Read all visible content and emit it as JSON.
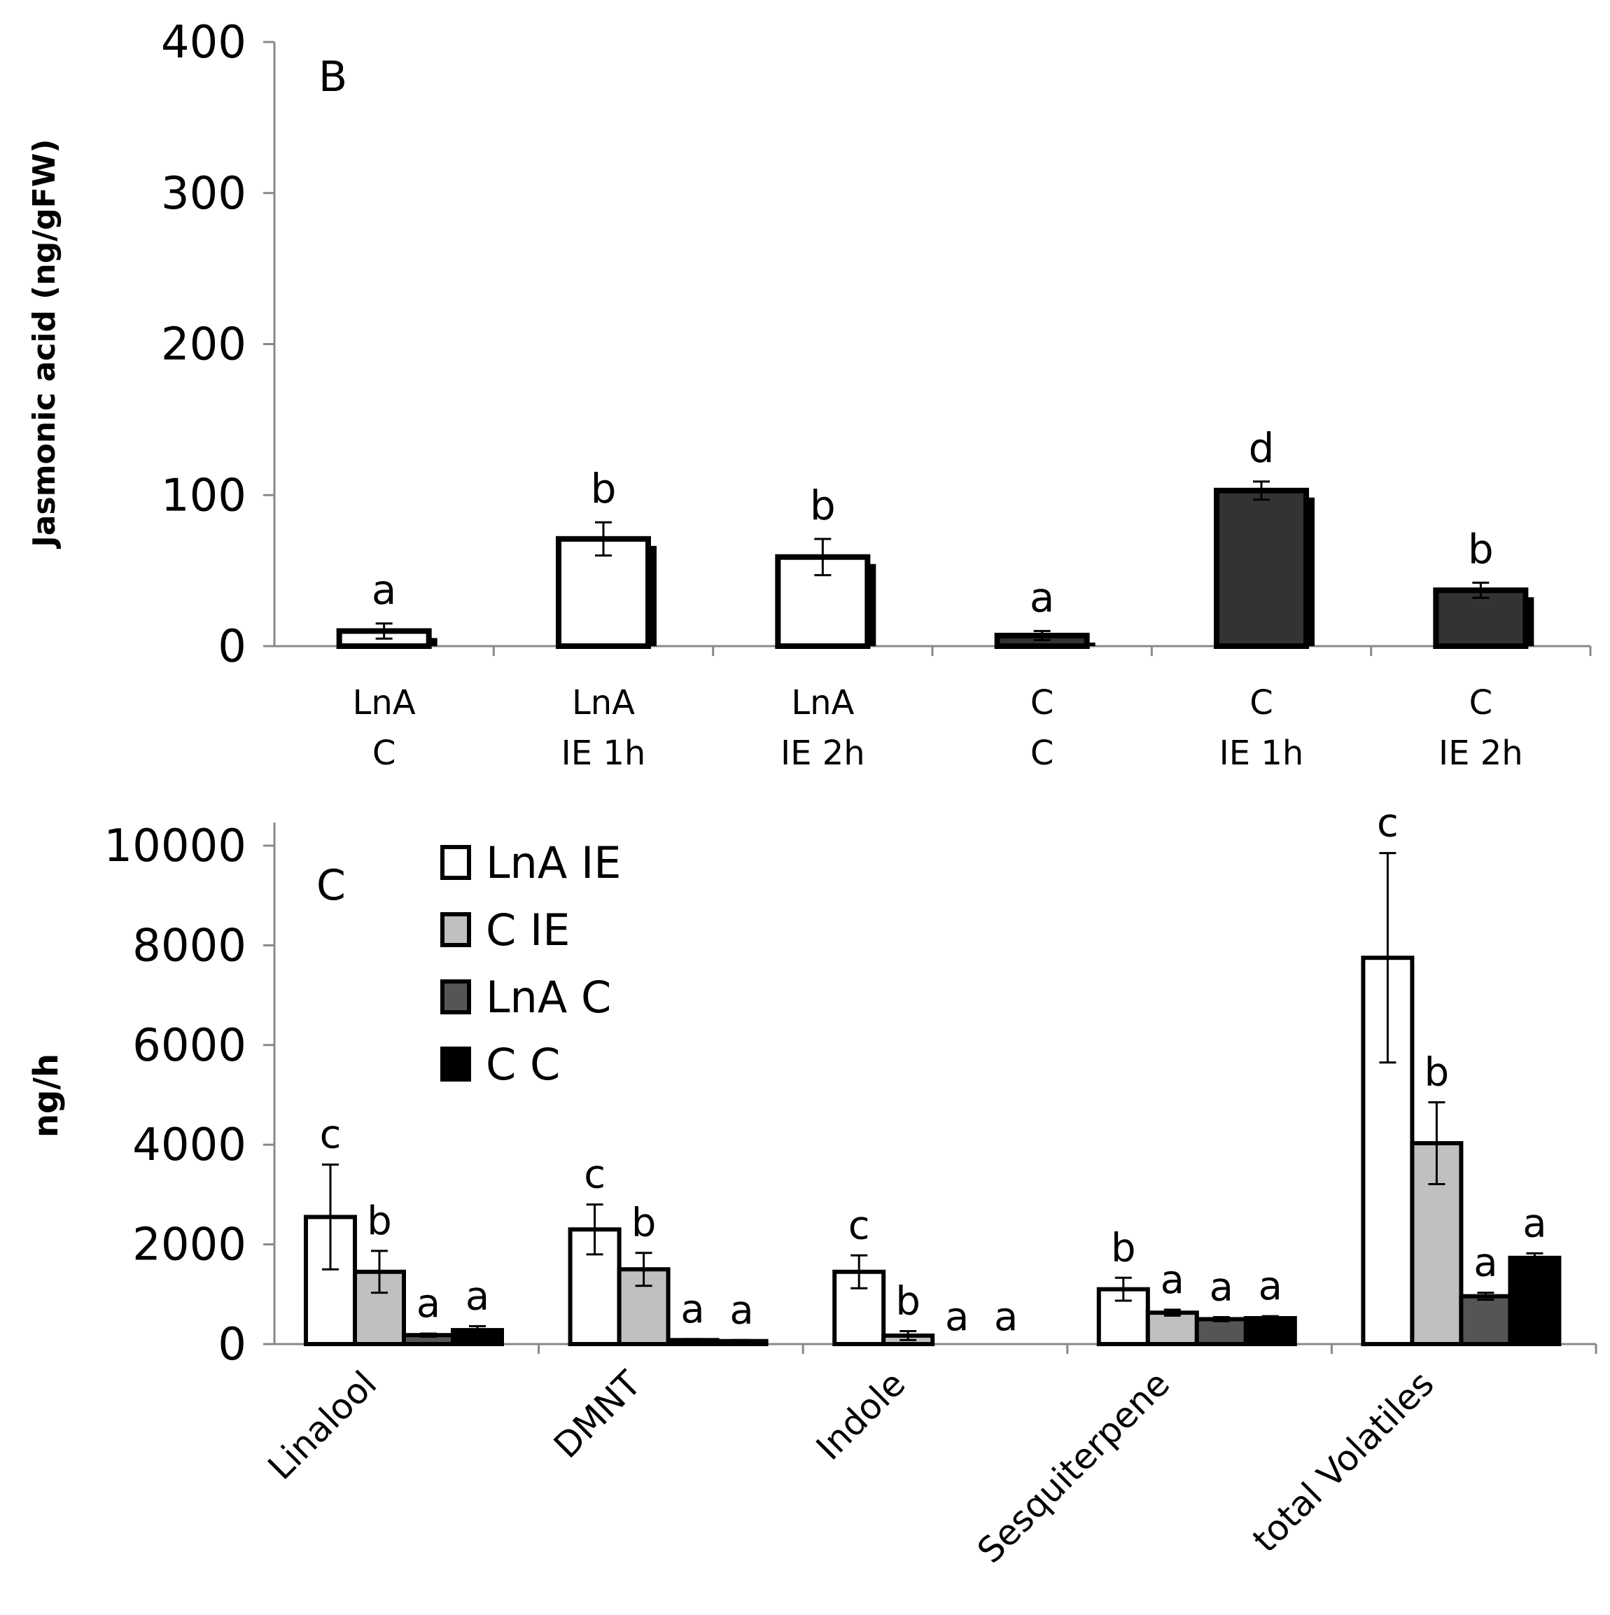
{
  "chart_data": [
    {
      "panel": "B",
      "type": "bar",
      "title": "",
      "panel_label": "B",
      "xlabel": "",
      "ylabel": "Jasmonic acid (ng/gFW)",
      "ylim": [
        0,
        400
      ],
      "yticks": [
        "0",
        "100",
        "200",
        "300",
        "400"
      ],
      "categories": [
        {
          "line1": "LnA",
          "line2": "C"
        },
        {
          "line1": "LnA",
          "line2": "IE 1h"
        },
        {
          "line1": "LnA",
          "line2": "IE 2h"
        },
        {
          "line1": "C",
          "line2": "C"
        },
        {
          "line1": "C",
          "line2": "IE 1h"
        },
        {
          "line1": "C",
          "line2": "IE 2h"
        }
      ],
      "values": [
        10,
        71,
        59,
        7,
        103,
        37
      ],
      "errors": [
        5,
        11,
        12,
        3,
        6,
        5
      ],
      "letters": [
        "a",
        "b",
        "b",
        "a",
        "d",
        "b"
      ],
      "bar_colors": [
        "#ffffff",
        "#ffffff",
        "#ffffff",
        "#333333",
        "#333333",
        "#333333"
      ],
      "grid": false
    },
    {
      "panel": "C",
      "type": "bar",
      "title": "",
      "panel_label": "C",
      "xlabel": "",
      "ylabel": "ng/h",
      "ylim": [
        0,
        10000
      ],
      "yticks": [
        "0",
        "2000",
        "4000",
        "6000",
        "8000",
        "10000"
      ],
      "categories": [
        "Linalool",
        "DMNT",
        "Indole",
        "Sesquiterpene",
        "total Volatiles"
      ],
      "series": [
        {
          "name": "LnA IE",
          "color": "#ffffff",
          "values": [
            2550,
            2300,
            1450,
            1100,
            7750
          ],
          "errors": [
            1050,
            500,
            330,
            230,
            2100
          ],
          "letters": [
            "c",
            "c",
            "c",
            "b",
            "c"
          ]
        },
        {
          "name": "C IE",
          "color": "#c0c0c0",
          "values": [
            1450,
            1500,
            170,
            630,
            4030
          ],
          "errors": [
            420,
            330,
            90,
            60,
            820
          ],
          "letters": [
            "b",
            "b",
            "b",
            "a",
            "b"
          ]
        },
        {
          "name": "LnA C",
          "color": "#555555",
          "values": [
            180,
            80,
            0,
            500,
            960
          ],
          "errors": [
            30,
            20,
            0,
            40,
            70
          ],
          "letters": [
            "a",
            "a",
            "a",
            "a",
            "a"
          ]
        },
        {
          "name": "C C",
          "color": "#000000",
          "values": [
            280,
            60,
            0,
            520,
            1730
          ],
          "errors": [
            80,
            20,
            0,
            40,
            90
          ],
          "letters": [
            "a",
            "a",
            "a",
            "a",
            "a"
          ]
        }
      ],
      "legend_position": "top-left",
      "grid": false
    }
  ]
}
